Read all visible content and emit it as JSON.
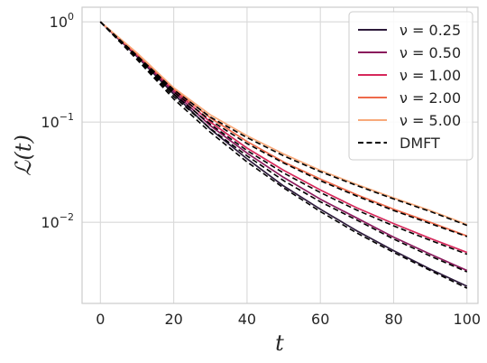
{
  "chart_data": {
    "type": "line",
    "xlabel": "t",
    "ylabel": "ℒ(t)",
    "xlim": [
      -5,
      103
    ],
    "ylim": [
      0.00155,
      1.4
    ],
    "yscale": "log",
    "grid": true,
    "legend_position": "top-right",
    "x_ticks": [
      0,
      20,
      40,
      60,
      80,
      100
    ],
    "x_tick_labels": [
      "0",
      "20",
      "40",
      "60",
      "80",
      "100"
    ],
    "y_ticks": [
      1,
      0.1,
      0.01
    ],
    "y_tick_labels": [
      {
        "base": "10",
        "exp": "0"
      },
      {
        "base": "10",
        "exp": "−1"
      },
      {
        "base": "10",
        "exp": "−2"
      }
    ],
    "x": [
      0,
      10,
      20,
      30,
      40,
      50,
      60,
      70,
      80,
      90,
      100
    ],
    "series": [
      {
        "name": "ν = 0.25",
        "color": "#2d1a3b",
        "dash": false,
        "values": [
          1.0,
          0.45,
          0.19,
          0.085,
          0.043,
          0.023,
          0.0135,
          0.0082,
          0.0052,
          0.0034,
          0.0023
        ]
      },
      {
        "name": "ν = 0.50",
        "color": "#8a1a5c",
        "dash": false,
        "values": [
          1.0,
          0.46,
          0.2,
          0.092,
          0.049,
          0.028,
          0.017,
          0.011,
          0.0071,
          0.0048,
          0.0033
        ]
      },
      {
        "name": "ν = 1.00",
        "color": "#d6285b",
        "dash": false,
        "values": [
          1.0,
          0.47,
          0.21,
          0.1,
          0.055,
          0.033,
          0.021,
          0.0139,
          0.0097,
          0.0069,
          0.005
        ]
      },
      {
        "name": "ν = 2.00",
        "color": "#ee6a4b",
        "dash": false,
        "values": [
          1.0,
          0.48,
          0.215,
          0.11,
          0.064,
          0.04,
          0.027,
          0.0188,
          0.0135,
          0.01,
          0.0073
        ]
      },
      {
        "name": "ν = 5.00",
        "color": "#f8a97a",
        "dash": false,
        "values": [
          1.0,
          0.49,
          0.22,
          0.118,
          0.073,
          0.048,
          0.033,
          0.0238,
          0.0175,
          0.0131,
          0.0095
        ]
      },
      {
        "name": "DMFT",
        "color": "#000000",
        "dash": true,
        "values": [
          1.0,
          0.42,
          0.17,
          0.079,
          0.04,
          0.022,
          0.0128,
          0.0078,
          0.005,
          0.0033,
          0.0022
        ]
      },
      {
        "name": "",
        "color": "#000000",
        "dash": true,
        "values": [
          1.0,
          0.43,
          0.18,
          0.086,
          0.046,
          0.026,
          0.016,
          0.0105,
          0.0068,
          0.0046,
          0.0032
        ]
      },
      {
        "name": "",
        "color": "#000000",
        "dash": true,
        "values": [
          1.0,
          0.44,
          0.19,
          0.095,
          0.052,
          0.031,
          0.0198,
          0.0132,
          0.0092,
          0.0066,
          0.0048
        ]
      },
      {
        "name": "",
        "color": "#000000",
        "dash": true,
        "values": [
          1.0,
          0.45,
          0.2,
          0.104,
          0.061,
          0.039,
          0.026,
          0.0182,
          0.0131,
          0.0097,
          0.0072
        ]
      },
      {
        "name": "",
        "color": "#000000",
        "dash": true,
        "values": [
          1.0,
          0.46,
          0.21,
          0.112,
          0.07,
          0.046,
          0.032,
          0.0232,
          0.0171,
          0.0128,
          0.0093
        ]
      }
    ]
  }
}
